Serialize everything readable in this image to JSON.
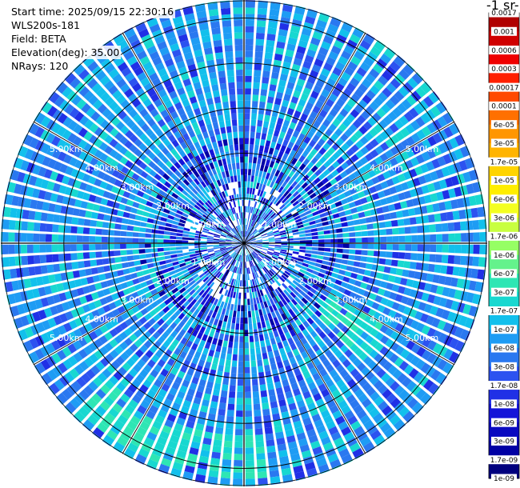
{
  "info": {
    "start_time": "Start time: 2025/09/15 22:30:16",
    "instrument": "WLS200s-181",
    "field": "Field: BETA",
    "elevation": "Elevation(deg): 35.00",
    "nrays": "NRays: 120"
  },
  "colorbar": {
    "unit_label": "-1 sr-",
    "ticks": [
      "0.0017",
      "0.001",
      "0.0006",
      "0.0003",
      "0.00017",
      "0.0001",
      "6e-05",
      "3e-05",
      "1.7e-05",
      "1e-05",
      "6e-06",
      "3e-06",
      "1.7e-06",
      "1e-06",
      "6e-07",
      "3e-07",
      "1.7e-07",
      "1e-07",
      "6e-08",
      "3e-08",
      "1.7e-08",
      "1e-08",
      "6e-09",
      "3e-09",
      "1.7e-09",
      "1e-09"
    ],
    "colors": [
      "#b00000",
      "#d00000",
      "#ef0000",
      "#ff2000",
      "#ff4a00",
      "#ff7000",
      "#ff9600",
      "#ffb400",
      "#ffd400",
      "#ffee00",
      "#f4ff20",
      "#c8ff40",
      "#96ff64",
      "#64f28c",
      "#2ee6b4",
      "#18d8d0",
      "#12c0ec",
      "#1e9cf4",
      "#2a78f0",
      "#2c52f0",
      "#2030e6",
      "#1414d8",
      "#0a0ac0",
      "#0000a4",
      "#00007e"
    ]
  },
  "chart_data": {
    "type": "heatmap",
    "title": "",
    "field": "BETA",
    "projection": "polar PPI",
    "nrays": 120,
    "elevation_deg": 35.0,
    "max_range_km": 5.4,
    "range_rings_km": [
      1,
      2,
      3,
      4,
      5
    ],
    "ring_labels": [
      "1.00km",
      "2.00km",
      "3.00km",
      "4.00km",
      "5.00km"
    ],
    "color_scale": "log",
    "value_range": [
      1e-09,
      0.0017
    ],
    "dominant_value_range": [
      3e-08,
      1.7e-07
    ],
    "enhanced_regions": [
      {
        "azimuth_deg": [
          120,
          135
        ],
        "range_km": [
          2.2,
          3.6
        ],
        "approx_value": 3e-07
      },
      {
        "azimuth_deg": [
          175,
          225
        ],
        "range_km": [
          4.2,
          5.3
        ],
        "approx_value": 3e-07
      }
    ]
  }
}
